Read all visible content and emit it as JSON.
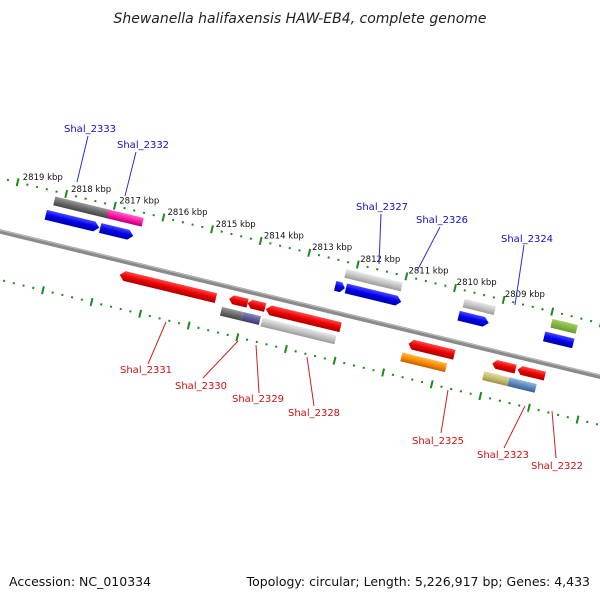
{
  "title": "Shewanella halifaxensis HAW-EB4, complete genome",
  "footer": {
    "accession": "Accession: NC_010334",
    "summary": "Topology: circular; Length: 5,226,917 bp; Genes: 4,433"
  },
  "scale_ticks": [
    "2819 kbp",
    "2818 kbp",
    "2817 kbp",
    "2816 kbp",
    "2815 kbp",
    "2814 kbp",
    "2813 kbp",
    "2812 kbp",
    "2811 kbp",
    "2810 kbp",
    "2809 kbp"
  ],
  "gene_labels_top": [
    "Shal_2333",
    "Shal_2332",
    "Shal_2327",
    "Shal_2326",
    "Shal_2324"
  ],
  "gene_labels_bottom": [
    "Shal_2331",
    "Shal_2330",
    "Shal_2329",
    "Shal_2328",
    "Shal_2325",
    "Shal_2323",
    "Shal_2322"
  ],
  "colors": {
    "backbone": "#888888",
    "ticks": "#1a8a1a",
    "forward_strand_label": "#1111bb",
    "reverse_strand_label": "#cc1111"
  }
}
